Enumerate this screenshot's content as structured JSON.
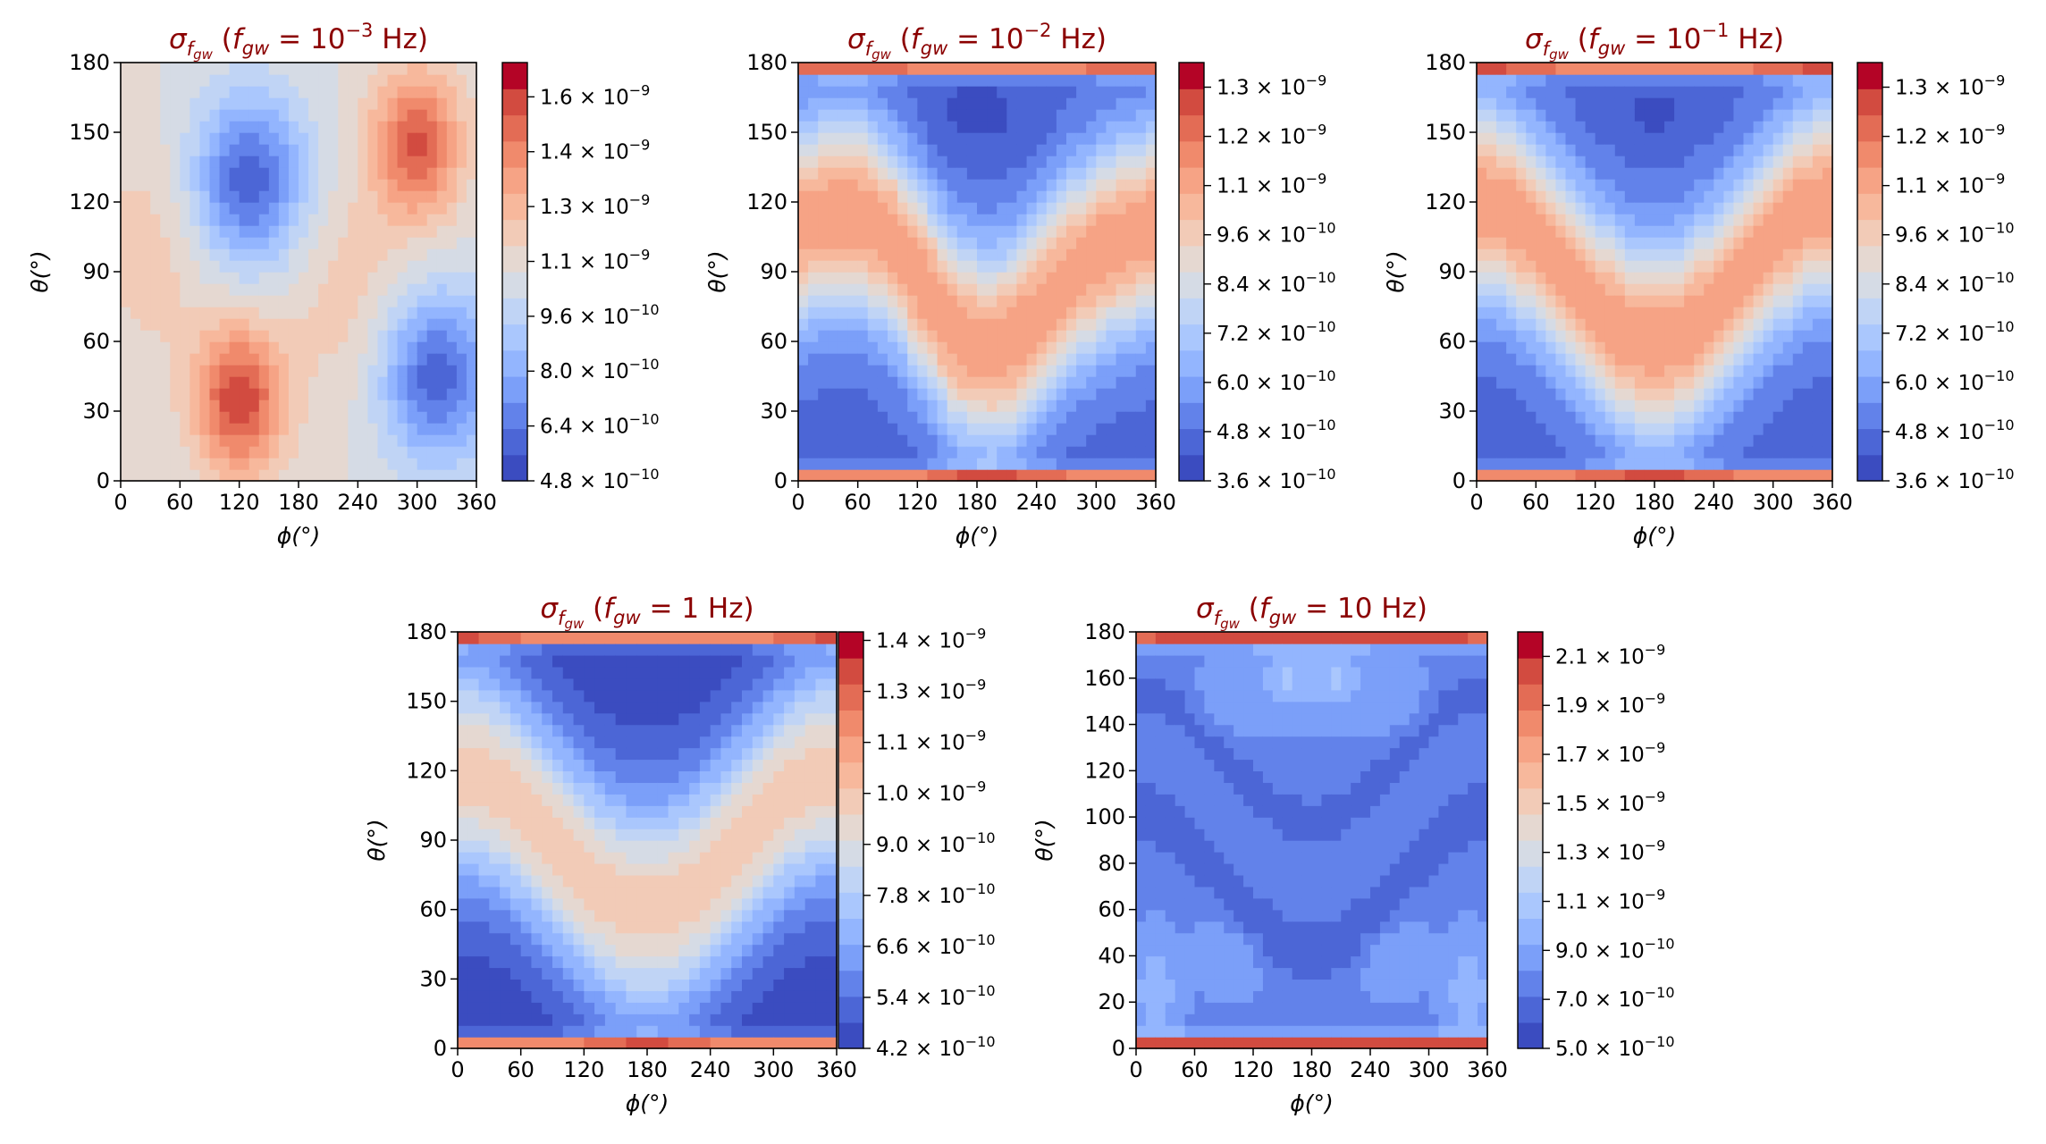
{
  "figure": {
    "colormap": [
      "#3b4cc0",
      "#4c66d6",
      "#6282ea",
      "#7b9ff9",
      "#93b5fe",
      "#aac7fd",
      "#c0d4f5",
      "#d5dbe5",
      "#e5d8d1",
      "#f2cbb7",
      "#f7b89c",
      "#f6a385",
      "#f08a6c",
      "#e36c55",
      "#d24b40",
      "#b40426"
    ]
  },
  "chart_data": [
    {
      "type": "heatmap",
      "title": {
        "sym": "σ",
        "sub": "f",
        "subsub": "gw",
        "pre": " (",
        "f": "f",
        "gwsub": "gw",
        "eq": " = ",
        "num": "10",
        "exp": "−3",
        "unit": " Hz)"
      },
      "xlabel": "ϕ(°)",
      "ylabel": "θ(°)",
      "xlim": [
        0,
        360
      ],
      "ylim": [
        0,
        180
      ],
      "xticks": [
        "0",
        "60",
        "120",
        "180",
        "240",
        "300",
        "360"
      ],
      "yticks": [
        "0",
        "30",
        "60",
        "90",
        "120",
        "150",
        "180"
      ],
      "colorbar_range": [
        4.8e-10,
        1.7e-09
      ],
      "colorbar_ticks": [
        {
          "m": "4.8",
          "e": "−10",
          "v": 4.8e-10
        },
        {
          "m": "6.4",
          "e": "−10",
          "v": 6.4e-10
        },
        {
          "m": "8.0",
          "e": "−10",
          "v": 8e-10
        },
        {
          "m": "9.6",
          "e": "−10",
          "v": 9.6e-10
        },
        {
          "m": "1.1",
          "e": "−9",
          "v": 1.12e-09
        },
        {
          "m": "1.3",
          "e": "−9",
          "v": 1.28e-09
        },
        {
          "m": "1.4",
          "e": "−9",
          "v": 1.44e-09
        },
        {
          "m": "1.6",
          "e": "−9",
          "v": 1.6e-09
        }
      ]
    },
    {
      "type": "heatmap",
      "title": {
        "sym": "σ",
        "sub": "f",
        "subsub": "gw",
        "pre": " (",
        "f": "f",
        "gwsub": "gw",
        "eq": " = ",
        "num": "10",
        "exp": "−2",
        "unit": " Hz)"
      },
      "xlabel": "ϕ(°)",
      "ylabel": "θ(°)",
      "xlim": [
        0,
        360
      ],
      "ylim": [
        0,
        180
      ],
      "xticks": [
        "0",
        "60",
        "120",
        "180",
        "240",
        "300",
        "360"
      ],
      "yticks": [
        "0",
        "30",
        "60",
        "90",
        "120",
        "150",
        "180"
      ],
      "colorbar_range": [
        3.6e-10,
        1.38e-09
      ],
      "colorbar_ticks": [
        {
          "m": "3.6",
          "e": "−10",
          "v": 3.6e-10
        },
        {
          "m": "4.8",
          "e": "−10",
          "v": 4.8e-10
        },
        {
          "m": "6.0",
          "e": "−10",
          "v": 6e-10
        },
        {
          "m": "7.2",
          "e": "−10",
          "v": 7.2e-10
        },
        {
          "m": "8.4",
          "e": "−10",
          "v": 8.4e-10
        },
        {
          "m": "9.6",
          "e": "−10",
          "v": 9.6e-10
        },
        {
          "m": "1.1",
          "e": "−9",
          "v": 1.08e-09
        },
        {
          "m": "1.2",
          "e": "−9",
          "v": 1.2e-09
        },
        {
          "m": "1.3",
          "e": "−9",
          "v": 1.32e-09
        }
      ]
    },
    {
      "type": "heatmap",
      "title": {
        "sym": "σ",
        "sub": "f",
        "subsub": "gw",
        "pre": " (",
        "f": "f",
        "gwsub": "gw",
        "eq": " = ",
        "num": "10",
        "exp": "−1",
        "unit": " Hz)"
      },
      "xlabel": "ϕ(°)",
      "ylabel": "θ(°)",
      "xlim": [
        0,
        360
      ],
      "ylim": [
        0,
        180
      ],
      "xticks": [
        "0",
        "60",
        "120",
        "180",
        "240",
        "300",
        "360"
      ],
      "yticks": [
        "0",
        "30",
        "60",
        "90",
        "120",
        "150",
        "180"
      ],
      "colorbar_range": [
        3.6e-10,
        1.38e-09
      ],
      "colorbar_ticks": [
        {
          "m": "3.6",
          "e": "−10",
          "v": 3.6e-10
        },
        {
          "m": "4.8",
          "e": "−10",
          "v": 4.8e-10
        },
        {
          "m": "6.0",
          "e": "−10",
          "v": 6e-10
        },
        {
          "m": "7.2",
          "e": "−10",
          "v": 7.2e-10
        },
        {
          "m": "8.4",
          "e": "−10",
          "v": 8.4e-10
        },
        {
          "m": "9.6",
          "e": "−10",
          "v": 9.6e-10
        },
        {
          "m": "1.1",
          "e": "−9",
          "v": 1.08e-09
        },
        {
          "m": "1.2",
          "e": "−9",
          "v": 1.2e-09
        },
        {
          "m": "1.3",
          "e": "−9",
          "v": 1.32e-09
        }
      ]
    },
    {
      "type": "heatmap",
      "title": {
        "sym": "σ",
        "sub": "f",
        "subsub": "gw",
        "pre": " (",
        "f": "f",
        "gwsub": "gw",
        "eq": " = ",
        "num": "1",
        "exp": "",
        "unit": " Hz)"
      },
      "xlabel": "ϕ(°)",
      "ylabel": "θ(°)",
      "xlim": [
        0,
        360
      ],
      "ylim": [
        0,
        180
      ],
      "xticks": [
        "0",
        "60",
        "120",
        "180",
        "240",
        "300",
        "360"
      ],
      "yticks": [
        "0",
        "30",
        "60",
        "90",
        "120",
        "150",
        "180"
      ],
      "colorbar_range": [
        4.2e-10,
        1.4e-09
      ],
      "colorbar_ticks": [
        {
          "m": "4.2",
          "e": "−10",
          "v": 4.2e-10
        },
        {
          "m": "5.4",
          "e": "−10",
          "v": 5.4e-10
        },
        {
          "m": "6.6",
          "e": "−10",
          "v": 6.6e-10
        },
        {
          "m": "7.8",
          "e": "−10",
          "v": 7.8e-10
        },
        {
          "m": "9.0",
          "e": "−10",
          "v": 9e-10
        },
        {
          "m": "1.0",
          "e": "−9",
          "v": 1.02e-09
        },
        {
          "m": "1.1",
          "e": "−9",
          "v": 1.14e-09
        },
        {
          "m": "1.3",
          "e": "−9",
          "v": 1.26e-09
        },
        {
          "m": "1.4",
          "e": "−9",
          "v": 1.38e-09
        }
      ]
    },
    {
      "type": "heatmap",
      "title": {
        "sym": "σ",
        "sub": "f",
        "subsub": "gw",
        "pre": " (",
        "f": "f",
        "gwsub": "gw",
        "eq": " = ",
        "num": "10",
        "exp": "",
        "unit": " Hz)"
      },
      "xlabel": "ϕ(°)",
      "ylabel": "θ(°)",
      "xlim": [
        0,
        360
      ],
      "ylim": [
        0,
        180
      ],
      "xticks": [
        "0",
        "60",
        "120",
        "180",
        "240",
        "300",
        "360"
      ],
      "yticks": [
        "0",
        "20",
        "40",
        "60",
        "80",
        "100",
        "120",
        "140",
        "160",
        "180"
      ],
      "colorbar_range": [
        5e-10,
        2.2e-09
      ],
      "colorbar_ticks": [
        {
          "m": "5.0",
          "e": "−10",
          "v": 5e-10
        },
        {
          "m": "7.0",
          "e": "−10",
          "v": 7e-10
        },
        {
          "m": "9.0",
          "e": "−10",
          "v": 9e-10
        },
        {
          "m": "1.1",
          "e": "−9",
          "v": 1.1e-09
        },
        {
          "m": "1.3",
          "e": "−9",
          "v": 1.3e-09
        },
        {
          "m": "1.5",
          "e": "−9",
          "v": 1.5e-09
        },
        {
          "m": "1.7",
          "e": "−9",
          "v": 1.7e-09
        },
        {
          "m": "1.9",
          "e": "−9",
          "v": 1.9e-09
        },
        {
          "m": "2.1",
          "e": "−9",
          "v": 2.1e-09
        }
      ]
    }
  ]
}
